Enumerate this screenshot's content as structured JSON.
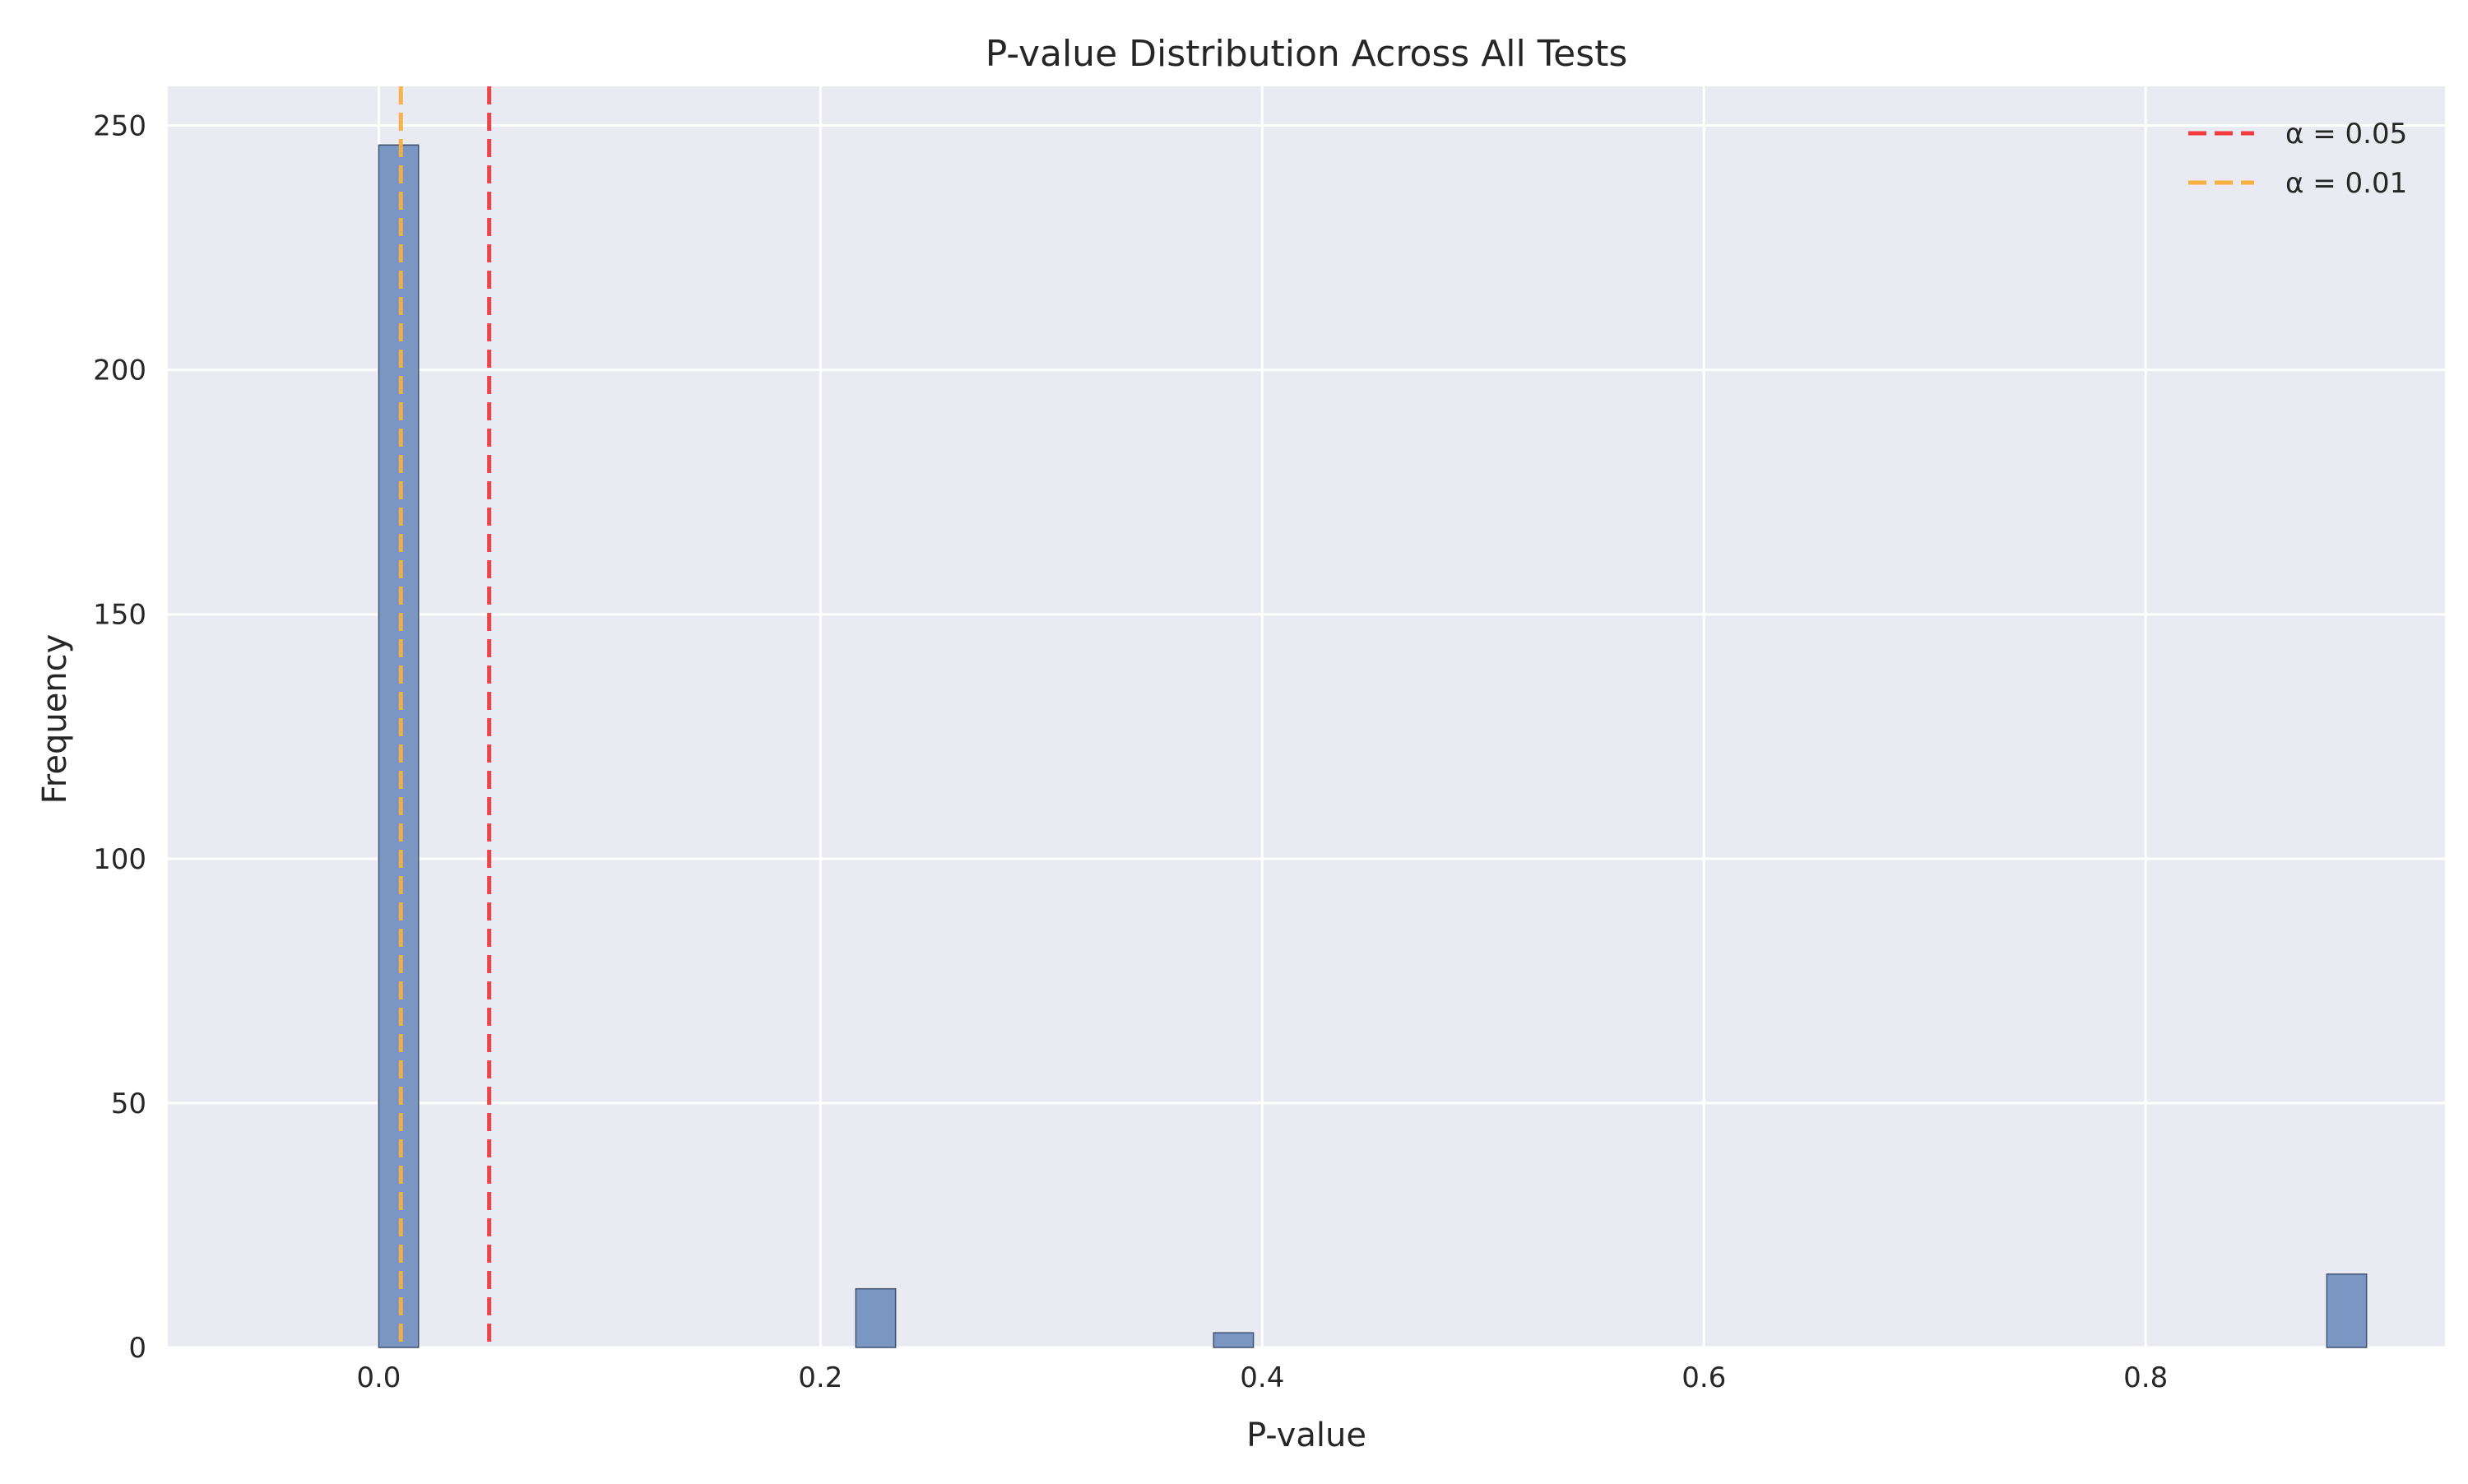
{
  "chart_data": {
    "type": "bar",
    "title": "P-value Distribution Across All Tests",
    "xlabel": "P-value",
    "ylabel": "Frequency",
    "xlim": [
      -0.0955,
      0.9355
    ],
    "ylim": [
      0,
      258
    ],
    "x_ticks": [
      0.0,
      0.2,
      0.4,
      0.6,
      0.8
    ],
    "x_tick_labels": [
      "0.0",
      "0.2",
      "0.4",
      "0.6",
      "0.8"
    ],
    "y_ticks": [
      0,
      50,
      100,
      150,
      200,
      250
    ],
    "y_tick_labels": [
      "0",
      "50",
      "100",
      "150",
      "200",
      "250"
    ],
    "grid": true,
    "bin_width": 0.018,
    "bars": [
      {
        "x_start": 0.0,
        "x_end": 0.018,
        "count": 246
      },
      {
        "x_start": 0.216,
        "x_end": 0.234,
        "count": 12
      },
      {
        "x_start": 0.378,
        "x_end": 0.396,
        "count": 3
      },
      {
        "x_start": 0.882,
        "x_end": 0.9,
        "count": 15
      }
    ],
    "reference_lines": [
      {
        "name": "α = 0.05",
        "x": 0.05,
        "color": "#f03c3c",
        "style": "dashed"
      },
      {
        "name": "α = 0.01",
        "x": 0.01,
        "color": "#f9b040",
        "style": "dashed"
      }
    ],
    "legend_position": "top-right",
    "colors": {
      "background": "#eaeaf2",
      "grid": "#ffffff",
      "bar_fill": "#7a96c2",
      "bar_edge": "#3f5270"
    }
  }
}
